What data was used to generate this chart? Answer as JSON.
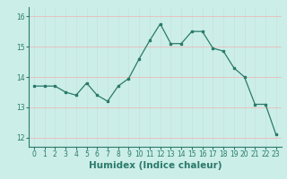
{
  "x": [
    0,
    1,
    2,
    3,
    4,
    5,
    6,
    7,
    8,
    9,
    10,
    11,
    12,
    13,
    14,
    15,
    16,
    17,
    18,
    19,
    20,
    21,
    22,
    23
  ],
  "y": [
    13.7,
    13.7,
    13.7,
    13.5,
    13.4,
    13.8,
    13.4,
    13.2,
    13.7,
    13.95,
    14.6,
    15.2,
    15.75,
    15.1,
    15.1,
    15.5,
    15.5,
    14.95,
    14.85,
    14.3,
    14.0,
    13.1,
    13.1,
    12.1
  ],
  "xlabel": "Humidex (Indice chaleur)",
  "ylabel": "",
  "ylim": [
    11.7,
    16.3
  ],
  "xlim": [
    -0.5,
    23.5
  ],
  "yticks": [
    12,
    13,
    14,
    15,
    16
  ],
  "xticks": [
    0,
    1,
    2,
    3,
    4,
    5,
    6,
    7,
    8,
    9,
    10,
    11,
    12,
    13,
    14,
    15,
    16,
    17,
    18,
    19,
    20,
    21,
    22,
    23
  ],
  "line_color": "#2a7a6a",
  "marker_color": "#2a7a6a",
  "bg_color": "#cceee8",
  "grid_color_h": "#f0b0b0",
  "grid_color_v": "#c8e0dc",
  "axis_color": "#2a7a6a",
  "tick_fontsize": 5.5,
  "xlabel_fontsize": 7.5,
  "tick_color": "#2a7a6a"
}
